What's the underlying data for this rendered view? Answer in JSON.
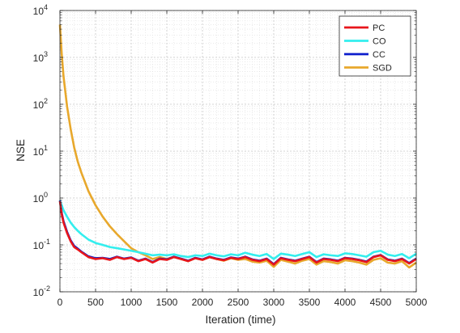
{
  "chart_data": {
    "type": "line",
    "title": "",
    "xlabel": "Iteration (time)",
    "ylabel": "NSE",
    "xlim": [
      0,
      5000
    ],
    "ylim": [
      0.01,
      10000
    ],
    "yscale": "log",
    "grid": true,
    "minor_grid": true,
    "legend_position": "top-right",
    "x_ticks": [
      "0",
      "500",
      "1000",
      "1500",
      "2000",
      "2500",
      "3000",
      "3500",
      "4000",
      "4500",
      "5000"
    ],
    "y_ticks": [
      {
        "base": "10",
        "exp": "-2"
      },
      {
        "base": "10",
        "exp": "-1"
      },
      {
        "base": "10",
        "exp": "0"
      },
      {
        "base": "10",
        "exp": "1"
      },
      {
        "base": "10",
        "exp": "2"
      },
      {
        "base": "10",
        "exp": "3"
      },
      {
        "base": "10",
        "exp": "4"
      }
    ],
    "x": [
      0,
      25,
      50,
      100,
      150,
      200,
      250,
      300,
      400,
      500,
      600,
      700,
      800,
      900,
      1000,
      1100,
      1200,
      1300,
      1400,
      1500,
      1600,
      1700,
      1800,
      1900,
      2000,
      2100,
      2200,
      2300,
      2400,
      2500,
      2600,
      2700,
      2800,
      2900,
      3000,
      3100,
      3200,
      3300,
      3400,
      3500,
      3600,
      3700,
      3800,
      3900,
      4000,
      4100,
      4200,
      4300,
      4400,
      4500,
      4600,
      4700,
      4800,
      4900,
      5000
    ],
    "series": [
      {
        "name": "PC",
        "color": "#e8151b",
        "values": [
          0.85,
          0.45,
          0.3,
          0.18,
          0.12,
          0.09,
          0.08,
          0.07,
          0.055,
          0.05,
          0.052,
          0.048,
          0.055,
          0.05,
          0.053,
          0.045,
          0.05,
          0.042,
          0.05,
          0.048,
          0.055,
          0.05,
          0.045,
          0.052,
          0.048,
          0.055,
          0.05,
          0.047,
          0.053,
          0.05,
          0.055,
          0.048,
          0.045,
          0.05,
          0.038,
          0.052,
          0.048,
          0.045,
          0.05,
          0.055,
          0.042,
          0.05,
          0.048,
          0.045,
          0.052,
          0.05,
          0.047,
          0.043,
          0.055,
          0.06,
          0.048,
          0.045,
          0.05,
          0.04,
          0.05
        ]
      },
      {
        "name": "CO",
        "color": "#33eeee",
        "values": [
          0.9,
          0.7,
          0.55,
          0.4,
          0.3,
          0.24,
          0.2,
          0.17,
          0.13,
          0.11,
          0.1,
          0.09,
          0.085,
          0.08,
          0.075,
          0.07,
          0.065,
          0.06,
          0.062,
          0.06,
          0.063,
          0.058,
          0.055,
          0.06,
          0.058,
          0.065,
          0.06,
          0.057,
          0.063,
          0.06,
          0.068,
          0.062,
          0.058,
          0.064,
          0.05,
          0.065,
          0.062,
          0.058,
          0.064,
          0.07,
          0.055,
          0.063,
          0.06,
          0.058,
          0.066,
          0.064,
          0.06,
          0.056,
          0.07,
          0.075,
          0.062,
          0.058,
          0.064,
          0.052,
          0.065
        ]
      },
      {
        "name": "CC",
        "color": "#0b1ccc",
        "values": [
          0.88,
          0.48,
          0.32,
          0.19,
          0.125,
          0.095,
          0.083,
          0.072,
          0.057,
          0.052,
          0.053,
          0.05,
          0.056,
          0.051,
          0.054,
          0.046,
          0.051,
          0.043,
          0.051,
          0.049,
          0.056,
          0.051,
          0.046,
          0.053,
          0.049,
          0.056,
          0.051,
          0.048,
          0.054,
          0.051,
          0.056,
          0.049,
          0.046,
          0.051,
          0.039,
          0.053,
          0.049,
          0.046,
          0.051,
          0.056,
          0.043,
          0.051,
          0.049,
          0.046,
          0.053,
          0.051,
          0.048,
          0.044,
          0.056,
          0.061,
          0.049,
          0.046,
          0.051,
          0.041,
          0.051
        ]
      },
      {
        "name": "SGD",
        "color": "#e8a82c",
        "values": [
          5000,
          1200,
          400,
          90,
          30,
          12,
          6,
          3.5,
          1.4,
          0.7,
          0.4,
          0.25,
          0.17,
          0.12,
          0.085,
          0.07,
          0.06,
          0.05,
          0.055,
          0.05,
          0.056,
          0.05,
          0.045,
          0.052,
          0.048,
          0.055,
          0.05,
          0.046,
          0.052,
          0.048,
          0.05,
          0.044,
          0.042,
          0.046,
          0.034,
          0.048,
          0.044,
          0.04,
          0.046,
          0.05,
          0.038,
          0.045,
          0.043,
          0.04,
          0.047,
          0.045,
          0.042,
          0.038,
          0.048,
          0.052,
          0.042,
          0.04,
          0.045,
          0.033,
          0.042
        ]
      }
    ]
  }
}
